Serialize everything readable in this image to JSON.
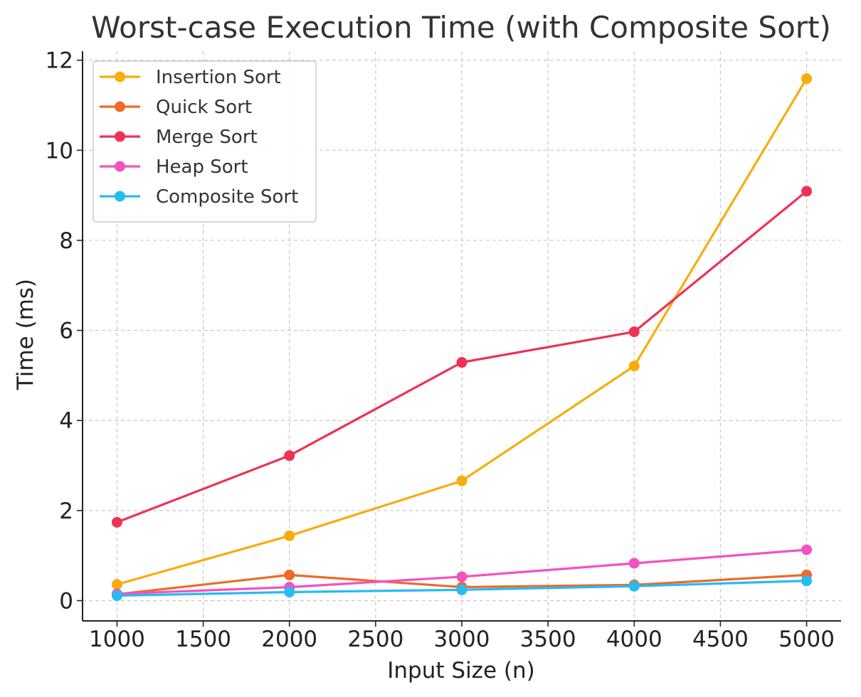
{
  "chart_data": {
    "type": "line",
    "title": "Worst-case Execution Time (with Composite Sort)",
    "xlabel": "Input Size (n)",
    "ylabel": "Time (ms)",
    "x": [
      1000,
      2000,
      3000,
      4000,
      5000
    ],
    "xlim": [
      800,
      5200
    ],
    "ylim": [
      -0.45,
      12.2
    ],
    "xticks": [
      1000,
      1500,
      2000,
      2500,
      3000,
      3500,
      4000,
      4500,
      5000
    ],
    "yticks": [
      0,
      2,
      4,
      6,
      8,
      10,
      12
    ],
    "grid": true,
    "legend_position": "top-left",
    "series": [
      {
        "name": "Insertion Sort",
        "color": "#F9AC0B",
        "values": [
          0.36,
          1.44,
          2.66,
          5.21,
          11.59
        ]
      },
      {
        "name": "Quick Sort",
        "color": "#EE6A26",
        "values": [
          0.14,
          0.57,
          0.3,
          0.35,
          0.57
        ]
      },
      {
        "name": "Merge Sort",
        "color": "#EE3253",
        "values": [
          1.74,
          3.22,
          5.29,
          5.97,
          9.09
        ]
      },
      {
        "name": "Heap Sort",
        "color": "#F352C1",
        "values": [
          0.15,
          0.3,
          0.53,
          0.83,
          1.13
        ]
      },
      {
        "name": "Composite Sort",
        "color": "#27BBF4",
        "values": [
          0.11,
          0.19,
          0.24,
          0.32,
          0.44
        ]
      }
    ]
  }
}
